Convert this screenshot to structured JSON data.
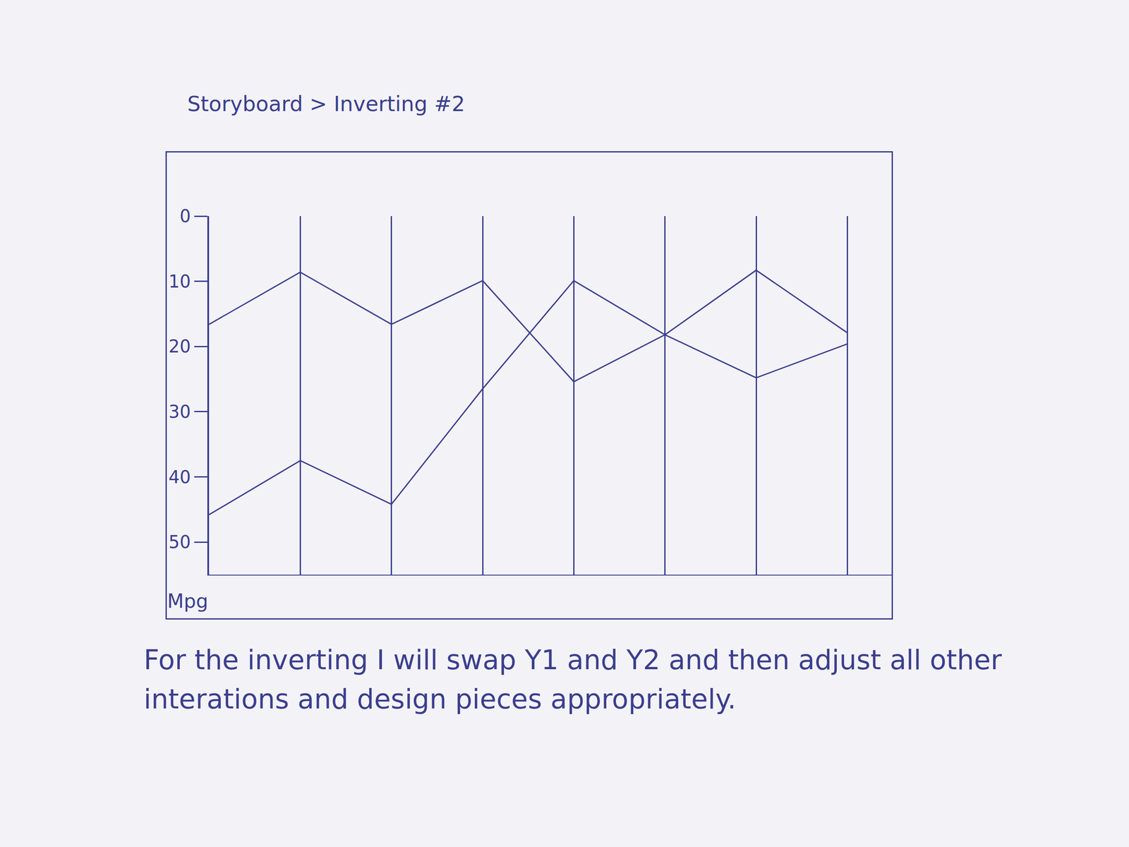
{
  "chart_data": {
    "type": "line",
    "title": "Storyboard > Inverting #2",
    "caption": "For the inverting I will swap Y1 and Y2 and then adjust all other interations and design pieces appropriately.",
    "y_label": "Mpg",
    "x": [
      0,
      1,
      2,
      3,
      4,
      5,
      6,
      7
    ],
    "series": [
      {
        "color": "#3b3f8c",
        "values": [
          16.6,
          8.6,
          16.6,
          9.9,
          25.4,
          18.2,
          24.8,
          19.6
        ]
      },
      {
        "color": "#3b3f8c",
        "values": [
          45.8,
          37.5,
          44.2,
          26.5,
          9.9,
          18.2,
          8.3,
          17.9
        ]
      }
    ],
    "xlim": [
      0,
      7.5
    ],
    "xticks": [
      1,
      2,
      3,
      4,
      5,
      6,
      7
    ],
    "ylim": [
      55,
      0
    ],
    "yticks": [
      0,
      10,
      20,
      30,
      40,
      50
    ],
    "grid": "x",
    "tick_labels": "y"
  }
}
